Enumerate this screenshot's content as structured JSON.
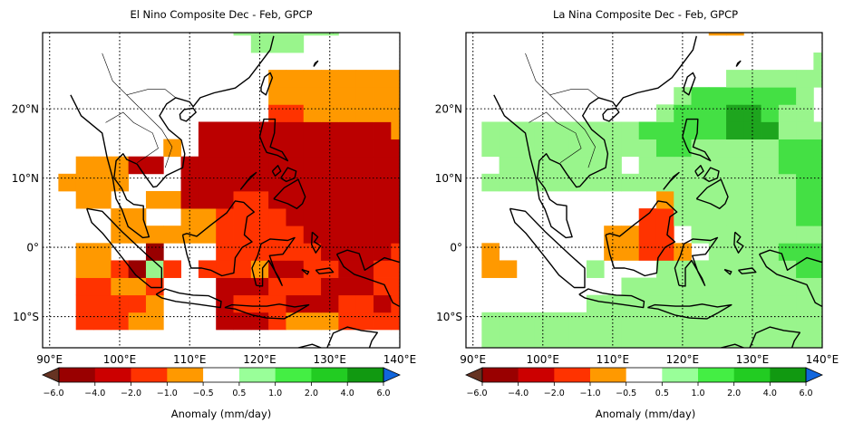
{
  "colorbar": {
    "label": "Anomaly (mm/day)",
    "ticks": [
      "−6.0",
      "−4.0",
      "−2.0",
      "−1.0",
      "−0.5",
      "0.5",
      "1.0",
      "2.0",
      "4.0",
      "6.0"
    ],
    "colors": [
      "#990000",
      "#cc0000",
      "#ff3300",
      "#ff9900",
      "#ffffff",
      "#99ff99",
      "#44ee44",
      "#22cc22",
      "#119911"
    ],
    "under_color": "#663322",
    "over_color": "#1166dd"
  },
  "axes": {
    "lon_labels": [
      "90°E",
      "100°E",
      "110°E",
      "120°E",
      "130°E",
      "140°E"
    ],
    "lon_values": [
      90,
      100,
      110,
      120,
      130,
      140
    ],
    "lat_labels": [
      "20°N",
      "10°N",
      "0°",
      "10°S"
    ],
    "lat_values": [
      20,
      10,
      0,
      -10
    ],
    "lon_range": [
      89,
      140
    ],
    "lat_range": [
      -14.5,
      31
    ]
  },
  "maps": [
    {
      "title": "El Nino Composite Dec - Feb, GPCP",
      "cell_deg": 2.5,
      "grid_origin": [
        88.75,
        -14.375
      ],
      "anomaly_levels_index_note": "",
      "cells": [
        [
          0,
          0,
          0,
          0,
          0,
          0,
          0,
          0,
          0,
          0,
          0,
          0,
          0,
          0,
          0,
          0,
          0,
          0,
          0,
          0,
          0,
          0
        ],
        [
          0,
          0,
          2,
          2,
          2,
          3,
          3,
          0,
          0,
          0,
          1,
          1,
          1,
          2,
          3,
          3,
          3,
          2,
          2,
          2,
          2,
          0
        ],
        [
          0,
          0,
          2,
          2,
          2,
          2,
          3,
          0,
          0,
          0,
          1,
          2,
          2,
          2,
          1,
          1,
          1,
          2,
          2,
          1,
          2,
          2
        ],
        [
          0,
          0,
          2,
          2,
          3,
          3,
          2,
          0,
          0,
          0,
          1,
          1,
          1,
          2,
          2,
          2,
          1,
          1,
          1,
          2,
          2,
          2
        ],
        [
          0,
          0,
          3,
          3,
          2,
          5,
          6,
          2,
          0,
          2,
          2,
          2,
          3,
          1,
          1,
          2,
          2,
          1,
          1,
          2,
          2,
          2
        ],
        [
          0,
          0,
          3,
          3,
          0,
          0,
          5,
          0,
          0,
          0,
          2,
          2,
          2,
          2,
          2,
          2,
          1,
          1,
          1,
          1,
          2,
          2
        ],
        [
          0,
          0,
          0,
          0,
          3,
          3,
          3,
          3,
          3,
          3,
          2,
          2,
          2,
          2,
          2,
          1,
          1,
          1,
          1,
          1,
          1,
          1
        ],
        [
          0,
          0,
          0,
          0,
          3,
          3,
          0,
          0,
          3,
          3,
          2,
          2,
          2,
          2,
          1,
          1,
          1,
          1,
          1,
          1,
          1,
          1
        ],
        [
          0,
          0,
          3,
          3,
          0,
          0,
          3,
          3,
          1,
          1,
          1,
          2,
          2,
          1,
          1,
          1,
          1,
          1,
          1,
          1,
          1,
          1
        ],
        [
          0,
          3,
          3,
          3,
          3,
          0,
          0,
          0,
          1,
          1,
          1,
          1,
          1,
          1,
          1,
          1,
          1,
          1,
          1,
          1,
          1,
          1
        ],
        [
          0,
          0,
          3,
          3,
          3,
          1,
          1,
          0,
          1,
          1,
          1,
          1,
          1,
          1,
          1,
          1,
          1,
          1,
          1,
          1,
          1,
          1
        ],
        [
          0,
          0,
          0,
          0,
          0,
          0,
          0,
          3,
          0,
          1,
          1,
          1,
          1,
          1,
          1,
          1,
          1,
          1,
          1,
          1,
          1,
          1
        ],
        [
          0,
          0,
          0,
          0,
          0,
          0,
          0,
          0,
          0,
          1,
          1,
          1,
          1,
          1,
          1,
          1,
          1,
          1,
          1,
          1,
          3,
          3
        ],
        [
          0,
          0,
          0,
          0,
          0,
          0,
          0,
          0,
          0,
          0,
          0,
          0,
          0,
          2,
          2,
          3,
          3,
          3,
          3,
          3,
          3,
          0
        ],
        [
          0,
          0,
          0,
          0,
          0,
          0,
          0,
          0,
          0,
          0,
          0,
          0,
          0,
          3,
          3,
          3,
          3,
          3,
          3,
          3,
          3,
          0
        ],
        [
          0,
          0,
          0,
          0,
          0,
          0,
          0,
          0,
          0,
          0,
          0,
          0,
          0,
          3,
          3,
          3,
          3,
          3,
          3,
          3,
          3,
          0
        ],
        [
          0,
          0,
          0,
          0,
          0,
          0,
          0,
          0,
          0,
          0,
          0,
          0,
          0,
          0,
          0,
          0,
          0,
          0,
          0,
          0,
          0,
          0
        ],
        [
          0,
          0,
          0,
          0,
          0,
          0,
          0,
          0,
          0,
          0,
          0,
          0,
          6,
          6,
          6,
          0,
          0,
          0,
          0,
          0,
          0,
          0
        ],
        [
          0,
          0,
          0,
          0,
          0,
          0,
          0,
          0,
          0,
          0,
          0,
          6,
          6,
          6,
          6,
          6,
          6,
          0,
          0,
          0,
          0,
          0
        ],
        [
          0,
          0,
          0,
          0,
          0,
          0,
          0,
          0,
          0,
          0,
          0,
          0,
          6,
          6,
          6,
          6,
          6,
          6,
          0,
          0,
          0,
          6
        ]
      ]
    },
    {
      "title": "La Nina Composite Dec - Feb, GPCP",
      "cell_deg": 2.5,
      "grid_origin": [
        88.75,
        -14.375
      ],
      "anomaly_levels_index_note": "",
      "cells": [
        [
          0,
          6,
          6,
          6,
          6,
          6,
          6,
          6,
          6,
          6,
          6,
          6,
          6,
          6,
          6,
          6,
          6,
          6,
          6,
          6,
          6,
          0
        ],
        [
          0,
          6,
          6,
          6,
          6,
          6,
          6,
          6,
          6,
          6,
          6,
          6,
          6,
          6,
          6,
          6,
          6,
          6,
          6,
          6,
          6,
          6
        ],
        [
          0,
          0,
          0,
          0,
          0,
          0,
          0,
          6,
          6,
          6,
          6,
          6,
          6,
          6,
          6,
          6,
          6,
          6,
          6,
          6,
          6,
          0
        ],
        [
          0,
          0,
          0,
          0,
          0,
          0,
          0,
          0,
          0,
          6,
          6,
          6,
          6,
          6,
          6,
          6,
          6,
          6,
          6,
          6,
          6,
          0
        ],
        [
          0,
          3,
          3,
          0,
          0,
          0,
          0,
          6,
          0,
          0,
          0,
          6,
          6,
          6,
          6,
          6,
          6,
          6,
          6,
          7,
          7,
          6
        ],
        [
          0,
          3,
          0,
          0,
          0,
          0,
          0,
          0,
          3,
          3,
          2,
          2,
          3,
          0,
          6,
          6,
          6,
          6,
          7,
          7,
          7,
          6
        ],
        [
          0,
          0,
          0,
          0,
          0,
          0,
          0,
          0,
          3,
          3,
          2,
          2,
          0,
          6,
          6,
          6,
          6,
          6,
          6,
          6,
          6,
          6
        ],
        [
          0,
          0,
          0,
          0,
          0,
          0,
          0,
          0,
          0,
          0,
          2,
          2,
          6,
          6,
          6,
          6,
          6,
          6,
          6,
          7,
          7,
          6
        ],
        [
          0,
          0,
          0,
          0,
          0,
          0,
          0,
          0,
          0,
          0,
          0,
          3,
          6,
          6,
          6,
          6,
          6,
          6,
          6,
          7,
          7,
          6
        ],
        [
          0,
          6,
          6,
          6,
          6,
          6,
          6,
          6,
          6,
          6,
          6,
          6,
          6,
          6,
          6,
          6,
          6,
          6,
          6,
          7,
          7,
          6
        ],
        [
          0,
          0,
          6,
          6,
          6,
          6,
          6,
          6,
          6,
          0,
          6,
          6,
          6,
          6,
          6,
          6,
          6,
          6,
          7,
          7,
          7,
          6
        ],
        [
          0,
          6,
          6,
          6,
          6,
          6,
          6,
          6,
          6,
          6,
          6,
          7,
          7,
          6,
          6,
          6,
          6,
          6,
          7,
          7,
          7,
          6
        ],
        [
          0,
          6,
          6,
          6,
          6,
          6,
          6,
          6,
          6,
          6,
          7,
          7,
          7,
          7,
          7,
          8,
          8,
          8,
          6,
          6,
          6,
          0
        ],
        [
          0,
          0,
          0,
          0,
          0,
          0,
          0,
          0,
          0,
          0,
          0,
          6,
          7,
          7,
          7,
          8,
          8,
          7,
          6,
          6,
          0,
          0
        ],
        [
          0,
          0,
          0,
          0,
          0,
          0,
          0,
          0,
          0,
          0,
          0,
          0,
          6,
          7,
          7,
          7,
          7,
          7,
          7,
          6,
          0,
          0
        ],
        [
          0,
          0,
          0,
          0,
          0,
          0,
          0,
          0,
          0,
          0,
          0,
          0,
          0,
          0,
          0,
          6,
          6,
          6,
          6,
          6,
          6,
          0
        ],
        [
          0,
          0,
          0,
          0,
          0,
          0,
          0,
          0,
          0,
          0,
          0,
          0,
          0,
          0,
          0,
          0,
          0,
          0,
          0,
          0,
          6,
          0
        ],
        [
          0,
          0,
          0,
          0,
          0,
          0,
          0,
          0,
          0,
          0,
          0,
          0,
          0,
          0,
          0,
          0,
          0,
          0,
          0,
          0,
          0,
          0
        ],
        [
          0,
          0,
          0,
          0,
          0,
          0,
          0,
          0,
          0,
          0,
          0,
          0,
          0,
          0,
          3,
          3,
          0,
          0,
          0,
          0,
          0,
          0
        ],
        [
          0,
          0,
          0,
          0,
          0,
          0,
          0,
          0,
          0,
          0,
          0,
          0,
          0,
          0,
          3,
          3,
          0,
          0,
          0,
          0,
          0,
          3
        ]
      ]
    }
  ]
}
